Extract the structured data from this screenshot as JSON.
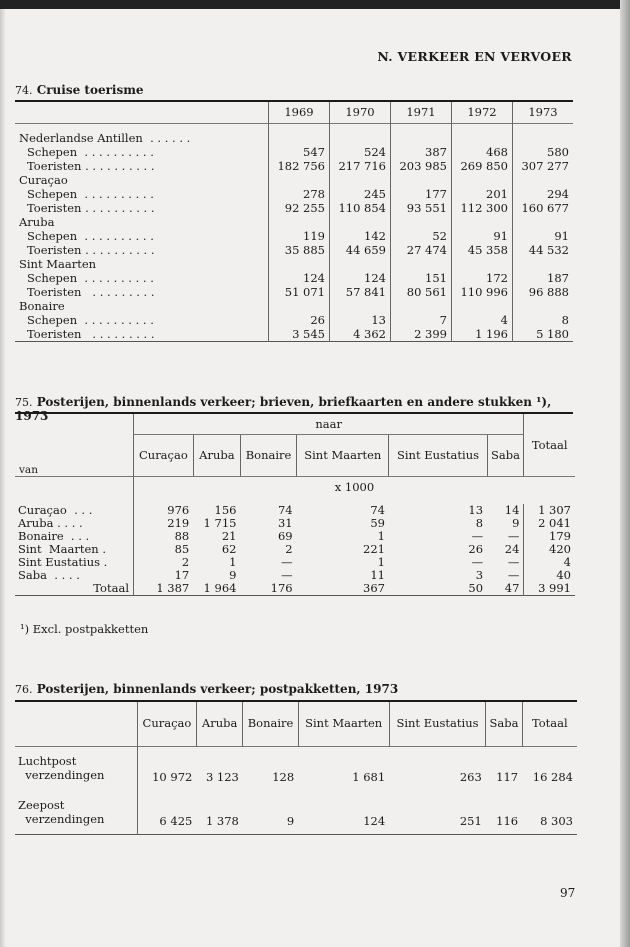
{
  "header": "N.  VERKEER EN VERVOER",
  "page_number": "97",
  "table74": {
    "number": "74.",
    "title": "Cruise toerisme",
    "years": [
      "1969",
      "1970",
      "1971",
      "1972",
      "1973"
    ],
    "groups": [
      {
        "name": "Nederlandse Antillen  . . . . . .",
        "rows": [
          {
            "label": "Schepen  . . . . . . . . . .",
            "values": [
              "547",
              "524",
              "387",
              "468",
              "580"
            ]
          },
          {
            "label": "Toeristen . . . . . . . . . .",
            "values": [
              "182 756",
              "217 716",
              "203 985",
              "269 850",
              "307 277"
            ]
          }
        ]
      },
      {
        "name": "Curaçao",
        "rows": [
          {
            "label": "Schepen  . . . . . . . . . .",
            "values": [
              "278",
              "245",
              "177",
              "201",
              "294"
            ]
          },
          {
            "label": "Toeristen . . . . . . . . . .",
            "values": [
              "92 255",
              "110 854",
              "93 551",
              "112 300",
              "160 677"
            ]
          }
        ]
      },
      {
        "name": "Aruba",
        "rows": [
          {
            "label": "Schepen  . . . . . . . . . .",
            "values": [
              "119",
              "142",
              "52",
              "91",
              "91"
            ]
          },
          {
            "label": "Toeristen . . . . . . . . . .",
            "values": [
              "35 885",
              "44 659",
              "27 474",
              "45 358",
              "44 532"
            ]
          }
        ]
      },
      {
        "name": "Sint Maarten",
        "rows": [
          {
            "label": "Schepen  . . . . . . . . . .",
            "values": [
              "124",
              "124",
              "151",
              "172",
              "187"
            ]
          },
          {
            "label": "Toeristen   . . . . . . . . .",
            "values": [
              "51 071",
              "57 841",
              "80 561",
              "110 996",
              "96 888"
            ]
          }
        ]
      },
      {
        "name": "Bonaire",
        "rows": [
          {
            "label": "Schepen  . . . . . . . . . .",
            "values": [
              "26",
              "13",
              "7",
              "4",
              "8"
            ]
          },
          {
            "label": "Toeristen   . . . . . . . . .",
            "values": [
              "3 545",
              "4 362",
              "2 399",
              "1 196",
              "5 180"
            ]
          }
        ]
      }
    ]
  },
  "table75": {
    "number": "75.",
    "title": "Posterijen, binnenlands verkeer; brieven, briefkaarten en andere stukken ¹), 1973",
    "row_header": "van",
    "group_header": "naar",
    "columns": [
      "Curaçao",
      "Aruba",
      "Bonaire",
      "Sint Maarten",
      "Sint Eustatius",
      "Saba"
    ],
    "total_header": "Totaal",
    "unit": "x 1000",
    "rows": [
      {
        "label": "Curaçao  . . .",
        "values": [
          "976",
          "156",
          "74",
          "74",
          "13",
          "14",
          "1 307"
        ]
      },
      {
        "label": "Aruba . . . .",
        "values": [
          "219",
          "1 715",
          "31",
          "59",
          "8",
          "9",
          "2 041"
        ]
      },
      {
        "label": "Bonaire  . . .",
        "values": [
          "88",
          "21",
          "69",
          "1",
          "—",
          "—",
          "179"
        ]
      },
      {
        "label": "Sint  Maarten .",
        "values": [
          "85",
          "62",
          "2",
          "221",
          "26",
          "24",
          "420"
        ]
      },
      {
        "label": "Sint Eustatius .",
        "values": [
          "2",
          "1",
          "—",
          "1",
          "—",
          "—",
          "4"
        ]
      },
      {
        "label": "Saba  . . . .",
        "values": [
          "17",
          "9",
          "—",
          "11",
          "3",
          "—",
          "40"
        ]
      },
      {
        "label": "Totaal",
        "values": [
          "1 387",
          "1 964",
          "176",
          "367",
          "50",
          "47",
          "3 991"
        ]
      }
    ],
    "footnote": "¹)  Excl. postpakketten"
  },
  "table76": {
    "number": "76.",
    "title": "Posterijen, binnenlands verkeer; postpakketten, 1973",
    "columns": [
      "Curaçao",
      "Aruba",
      "Bonaire",
      "Sint Maarten",
      "Sint Eustatius",
      "Saba",
      "Totaal"
    ],
    "rows": [
      {
        "label": "Luchtpost\n  verzendingen",
        "values": [
          "10 972",
          "3 123",
          "128",
          "1 681",
          "263",
          "117",
          "16 284"
        ]
      },
      {
        "label": "Zeepost\n  verzendingen",
        "values": [
          "6 425",
          "1 378",
          "9",
          "124",
          "251",
          "116",
          "8 303"
        ]
      }
    ]
  }
}
